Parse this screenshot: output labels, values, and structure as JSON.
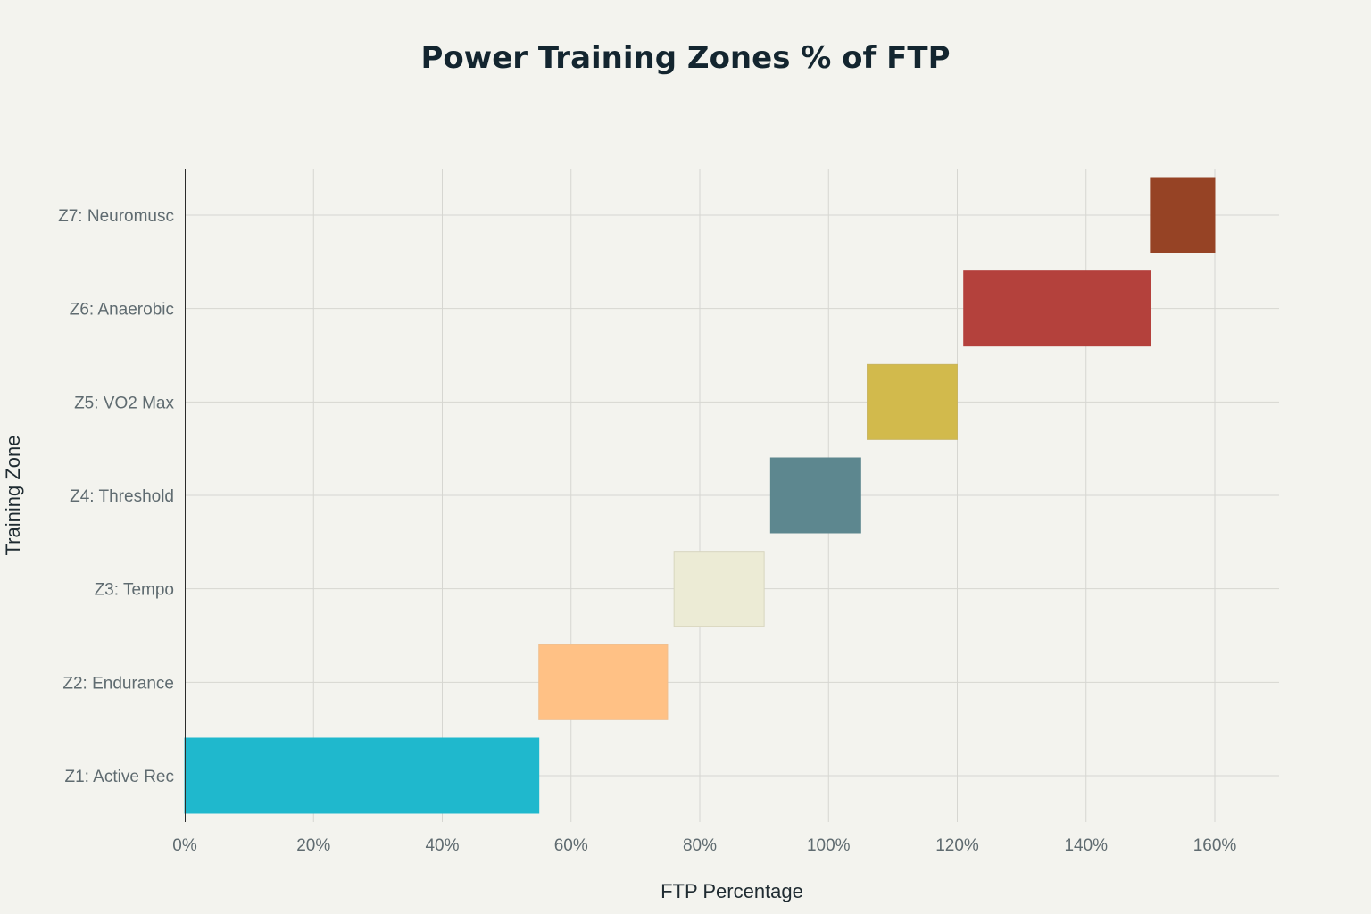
{
  "chart_data": {
    "type": "bar",
    "orientation": "horizontal-range",
    "title": "Power Training Zones % of FTP",
    "xlabel": "FTP Percentage",
    "ylabel": "Training Zone",
    "xlim": [
      0,
      170
    ],
    "x_ticks": [
      0,
      20,
      40,
      60,
      80,
      100,
      120,
      140,
      160
    ],
    "x_tick_labels": [
      "0%",
      "20%",
      "40%",
      "60%",
      "80%",
      "100%",
      "120%",
      "140%",
      "160%"
    ],
    "grid": true,
    "legend": "none",
    "categories": [
      "Z1: Active Rec",
      "Z2: Endurance",
      "Z3: Tempo",
      "Z4: Threshold",
      "Z5: VO2 Max",
      "Z6: Anaerobic",
      "Z7: Neuromusc"
    ],
    "ranges": [
      {
        "start": 0,
        "end": 55,
        "color": "#1fb8cd",
        "border": "#1fb8cd"
      },
      {
        "start": 55,
        "end": 75,
        "color": "#ffc185",
        "border": "#efc090"
      },
      {
        "start": 76,
        "end": 90,
        "color": "#ecebd5",
        "border": "#d8d6bf"
      },
      {
        "start": 91,
        "end": 105,
        "color": "#5d878f",
        "border": "#5d878f"
      },
      {
        "start": 106,
        "end": 120,
        "color": "#d2ba4c",
        "border": "#c9b560"
      },
      {
        "start": 121,
        "end": 150,
        "color": "#b4413c",
        "border": "#b4413c"
      },
      {
        "start": 150,
        "end": 160,
        "color": "#944454",
        "border": "#944454",
        "fill_override": "#964325"
      }
    ]
  }
}
